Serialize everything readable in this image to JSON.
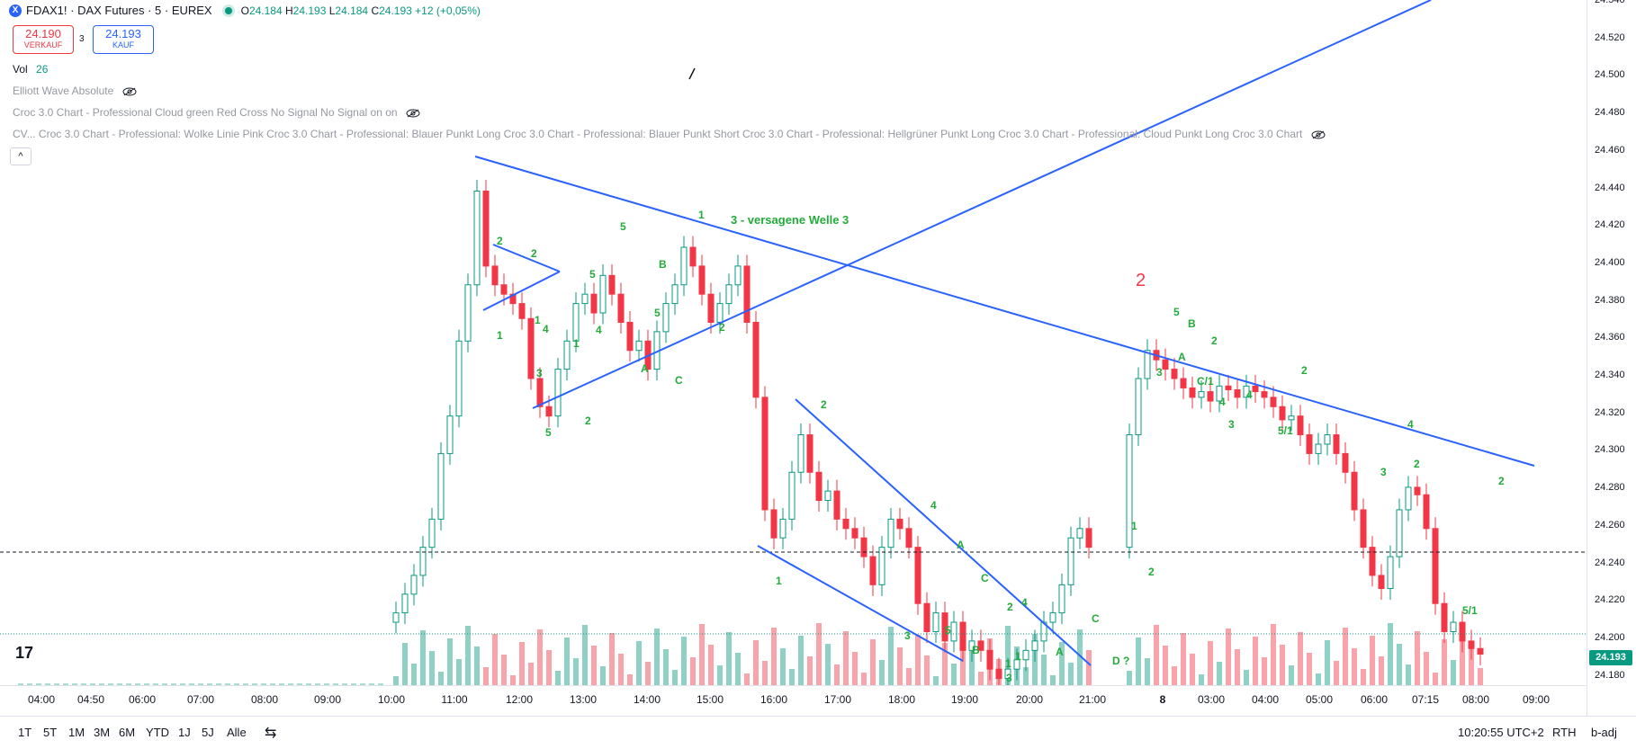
{
  "header": {
    "symbol_icon": "X",
    "symbol": "FDAX1! · DAX Futures · 5 · EUREX",
    "ohlc": [
      {
        "k": "O",
        "v": "24.184"
      },
      {
        "k": "H",
        "v": "24.193"
      },
      {
        "k": "L",
        "v": "24.184"
      },
      {
        "k": "C",
        "v": "24.193 +12 (+0,05%)"
      }
    ]
  },
  "trade": {
    "sell_price": "24.190",
    "sell_label": "VERKAUF",
    "spread": "3",
    "buy_price": "24.193",
    "buy_label": "KAUF"
  },
  "indicators": {
    "vol_label": "Vol",
    "vol_value": "26",
    "elliott": "Elliott Wave Absolute",
    "croc_cloud": "Croc 3.0 Chart - Professional Cloud green Red Cross No Signal No Signal on on",
    "croc_cv": "CV... Croc 3.0 Chart - Professional: Wolke Linie Pink Croc 3.0 Chart - Professional: Blauer Punkt Long Croc 3.0 Chart - Professional: Blauer Punkt Short Croc 3.0 Chart - Professional: Hellgrüner Punkt Long Croc 3.0 Chart - Professional: Cloud Punkt Long Croc 3.0 Chart",
    "collapse": "^"
  },
  "price_axis": {
    "labels": [
      "24.540",
      "24.520",
      "24.500",
      "24.480",
      "24.460",
      "24.440",
      "24.420",
      "24.400",
      "24.380",
      "24.360",
      "24.340",
      "24.320",
      "24.300",
      "24.280",
      "24.260",
      "24.240",
      "24.220",
      "24.200",
      "24.180"
    ],
    "current_price": "24.193"
  },
  "time_axis": {
    "labels": [
      "04:00",
      "04:50",
      "06:00",
      "07:00",
      "08:00",
      "09:00",
      "10:00",
      "11:00",
      "12:00",
      "13:00",
      "14:00",
      "15:00",
      "16:00",
      "17:00",
      "18:00",
      "19:00",
      "20:00",
      "21:00",
      "8",
      "03:00",
      "04:00",
      "05:00",
      "06:00",
      "07:15",
      "08:00",
      "09:00"
    ]
  },
  "annotations": {
    "wave_title": "3 - versagene Welle 3",
    "big_two": "2",
    "labels": [
      "2",
      "2",
      "1",
      "1",
      "5",
      "4",
      "3",
      "5",
      "2",
      "1",
      "5",
      "4",
      "5",
      "B",
      "A",
      "C",
      "1",
      "2",
      "2",
      "1",
      "4",
      "A",
      "C",
      "5",
      "B",
      "2",
      "3",
      "1",
      "4",
      "1",
      "3",
      "C",
      "A",
      "D ?",
      "1",
      "2",
      "5",
      "B",
      "2",
      "A",
      "3",
      "C/1",
      "4",
      "4",
      "3",
      "2",
      "5/1",
      "4",
      "2",
      "3",
      "2",
      "5/1"
    ]
  },
  "bottom_bar": {
    "ranges": [
      "1T",
      "5T",
      "1M",
      "3M",
      "6M",
      "YTD",
      "1J",
      "5J",
      "Alle"
    ],
    "clock": "10:20:55 UTC+2",
    "session": "RTH",
    "adj": "b-adj"
  },
  "colors": {
    "up": "#089981",
    "down": "#f23645",
    "trendline": "#2962ff",
    "wave_label": "#22ab3a"
  }
}
